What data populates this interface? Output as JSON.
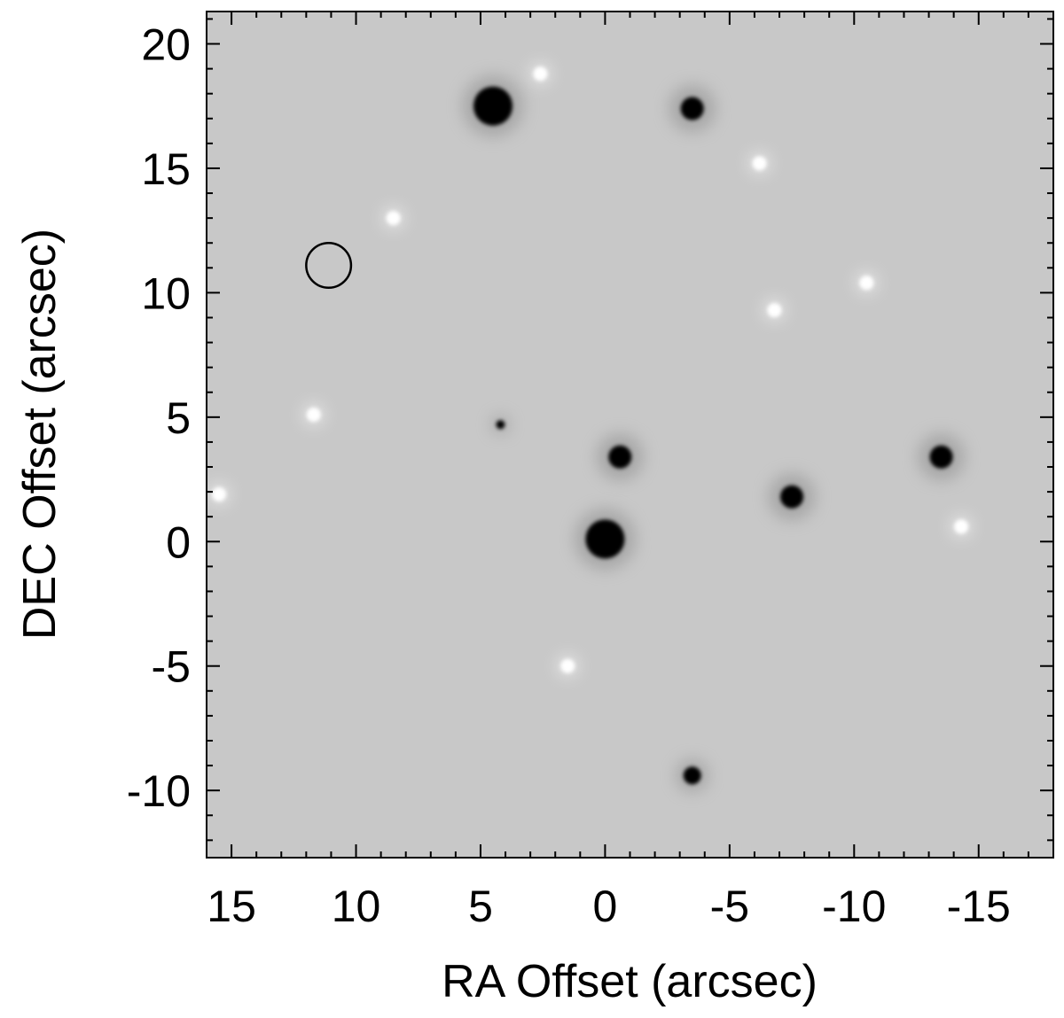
{
  "figure": {
    "xlabel": "RA Offset (arcsec)",
    "ylabel": "DEC Offset (arcsec)",
    "x_axis": {
      "range": [
        16,
        -18
      ],
      "major_ticks": [
        15,
        10,
        5,
        0,
        -5,
        -10,
        -15
      ],
      "tick_labels": [
        "15",
        "10",
        "5",
        "0",
        "-5",
        "-10",
        "-15"
      ],
      "minor_step": 1
    },
    "y_axis": {
      "range": [
        -12.7,
        21.3
      ],
      "major_ticks": [
        20,
        15,
        10,
        5,
        0,
        -5,
        -10
      ],
      "tick_labels": [
        "20",
        "15",
        "10",
        "5",
        "0",
        "-5",
        "-10"
      ],
      "minor_step": 1
    },
    "colors": {
      "background": "#c8c8c8",
      "dark_source": "#000000",
      "bright_residual": "#ffffff",
      "axes": "#000000"
    },
    "dark_sources": [
      {
        "ra": 0.0,
        "dec": 0.1,
        "strength": "strong"
      },
      {
        "ra": -0.6,
        "dec": 3.4,
        "strength": "medium"
      },
      {
        "ra": 4.5,
        "dec": 17.5,
        "strength": "strong"
      },
      {
        "ra": -3.5,
        "dec": 17.4,
        "strength": "medium"
      },
      {
        "ra": -7.5,
        "dec": 1.8,
        "strength": "medium"
      },
      {
        "ra": -13.5,
        "dec": 3.4,
        "strength": "medium"
      },
      {
        "ra": -3.5,
        "dec": -9.4,
        "strength": "small"
      },
      {
        "ra": 4.2,
        "dec": 4.7,
        "strength": "tiny"
      }
    ],
    "bright_residuals": [
      {
        "ra": 2.6,
        "dec": 18.8
      },
      {
        "ra": 1.5,
        "dec": -5.0
      },
      {
        "ra": -14.3,
        "dec": 0.6
      },
      {
        "ra": -10.5,
        "dec": 10.4
      },
      {
        "ra": 8.5,
        "dec": 13.0
      },
      {
        "ra": 11.7,
        "dec": 5.1
      },
      {
        "ra": 15.5,
        "dec": 1.9
      },
      {
        "ra": -6.2,
        "dec": 15.2
      },
      {
        "ra": -6.8,
        "dec": 9.3
      }
    ],
    "marker_circle": {
      "ra": 11.1,
      "dec": 11.1,
      "radius_arcsec": 0.9
    }
  }
}
